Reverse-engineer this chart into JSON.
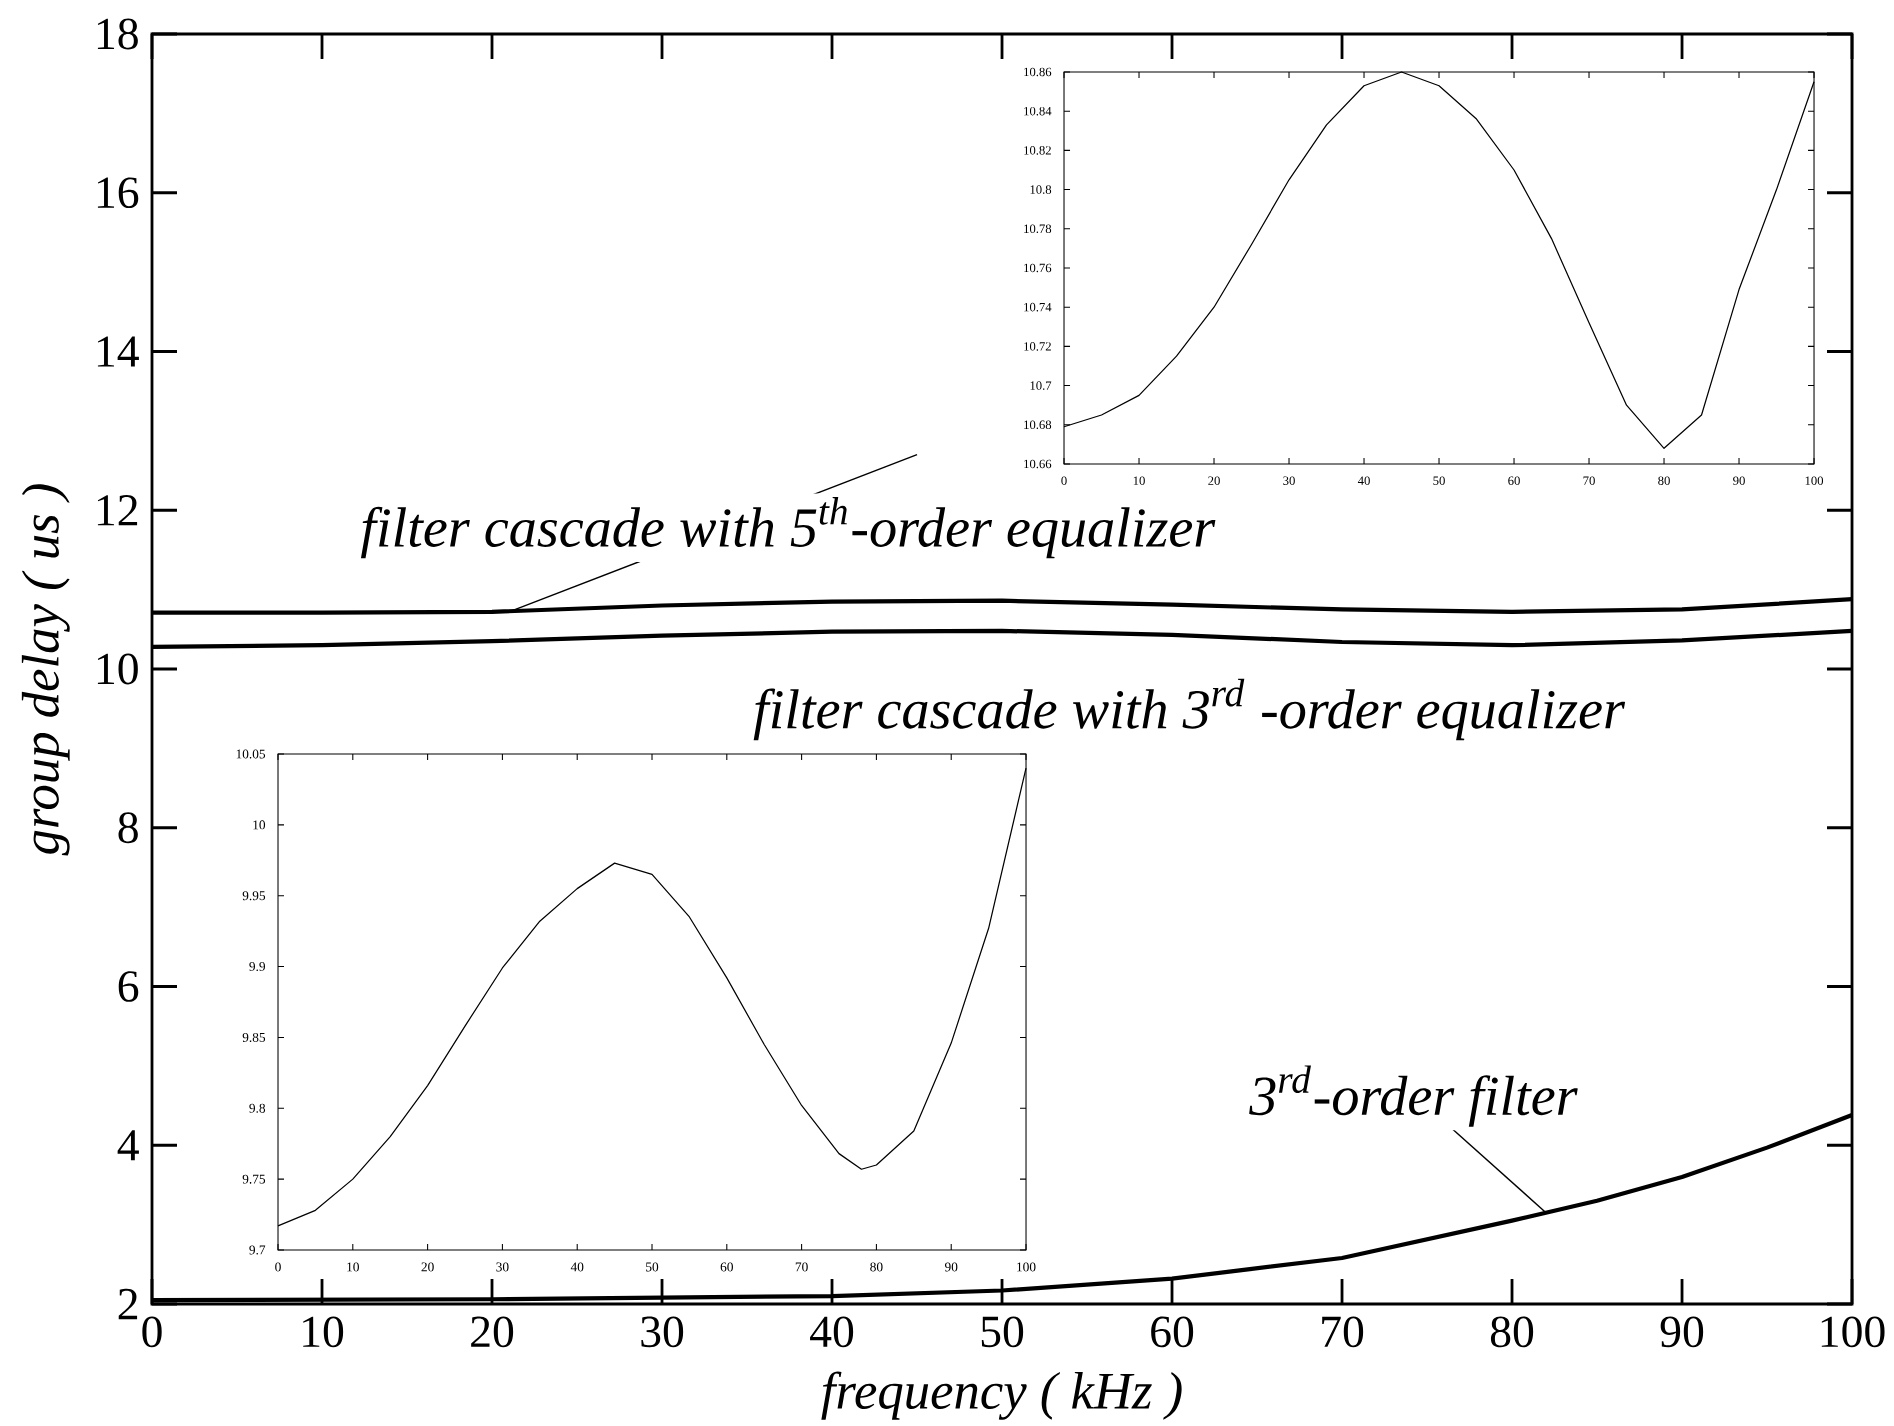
{
  "chart_data": [
    {
      "type": "line",
      "xlabel": "frequency  ( kHz )",
      "ylabel": "group  delay  ( us )",
      "xlim": [
        0,
        100
      ],
      "ylim": [
        2,
        18
      ],
      "xticks": [
        0,
        10,
        20,
        30,
        40,
        50,
        60,
        70,
        80,
        90,
        100
      ],
      "yticks": [
        2,
        4,
        6,
        8,
        10,
        12,
        14,
        16,
        18
      ],
      "series": [
        {
          "color": "#000000",
          "x": [
            0,
            10,
            20,
            30,
            40,
            50,
            60,
            70,
            80,
            90,
            100
          ],
          "values": [
            10.71,
            10.71,
            10.72,
            10.8,
            10.85,
            10.86,
            10.81,
            10.75,
            10.72,
            10.75,
            10.88
          ]
        },
        {
          "color": "#000000",
          "x": [
            0,
            10,
            20,
            30,
            40,
            50,
            60,
            70,
            80,
            90,
            100
          ],
          "values": [
            10.28,
            10.3,
            10.35,
            10.42,
            10.47,
            10.48,
            10.43,
            10.34,
            10.3,
            10.36,
            10.48
          ]
        },
        {
          "color": "#000000",
          "x": [
            0,
            20,
            40,
            50,
            60,
            70,
            80,
            85,
            90,
            95,
            100
          ],
          "values": [
            2.05,
            2.06,
            2.1,
            2.17,
            2.32,
            2.58,
            3.05,
            3.3,
            3.6,
            3.97,
            4.38
          ]
        }
      ],
      "annotations": [
        {
          "text": "filter cascade with  5$^{th}$-order equalizer",
          "x": 21,
          "y": 10.72
        },
        "filter cascade with  3$^{rd}$ -order equalizer",
        {
          "text": "3$^{rd}$-order filter",
          "x": 82,
          "y": 3.15
        }
      ]
    },
    {
      "type": "line",
      "xlim": [
        0,
        100
      ],
      "ylim": [
        10.66,
        10.86
      ],
      "xticks": [
        0,
        10,
        20,
        30,
        40,
        50,
        60,
        70,
        80,
        90,
        100
      ],
      "yticks": [
        10.66,
        10.68,
        10.7,
        10.72,
        10.74,
        10.76,
        10.78,
        10.8,
        10.82,
        10.84,
        10.86
      ],
      "series": [
        {
          "color": "#000000",
          "x": [
            0,
            5,
            10,
            15,
            20,
            25,
            30,
            35,
            40,
            45,
            50,
            55,
            60,
            65,
            70,
            75,
            80,
            85,
            90,
            95,
            100
          ],
          "values": [
            10.679,
            10.685,
            10.695,
            10.715,
            10.74,
            10.772,
            10.805,
            10.833,
            10.853,
            10.86,
            10.853,
            10.836,
            10.81,
            10.775,
            10.732,
            10.69,
            10.668,
            10.685,
            10.749,
            10.8,
            10.855
          ]
        }
      ]
    },
    {
      "type": "line",
      "xlim": [
        0,
        100
      ],
      "ylim": [
        9.7,
        10.05
      ],
      "xticks": [
        0,
        10,
        20,
        30,
        40,
        50,
        60,
        70,
        80,
        90,
        100
      ],
      "yticks": [
        9.7,
        9.75,
        9.8,
        9.85,
        9.9,
        9.95,
        10,
        10.05
      ],
      "series": [
        {
          "color": "#000000",
          "x": [
            0,
            5,
            10,
            15,
            20,
            25,
            30,
            35,
            40,
            45,
            50,
            55,
            60,
            65,
            70,
            75,
            78,
            80,
            85,
            90,
            95,
            100
          ],
          "values": [
            9.717,
            9.728,
            9.75,
            9.78,
            9.816,
            9.858,
            9.899,
            9.932,
            9.955,
            9.973,
            9.965,
            9.935,
            9.892,
            9.845,
            9.802,
            9.768,
            9.757,
            9.76,
            9.784,
            9.846,
            9.927,
            10.04
          ]
        }
      ]
    }
  ]
}
